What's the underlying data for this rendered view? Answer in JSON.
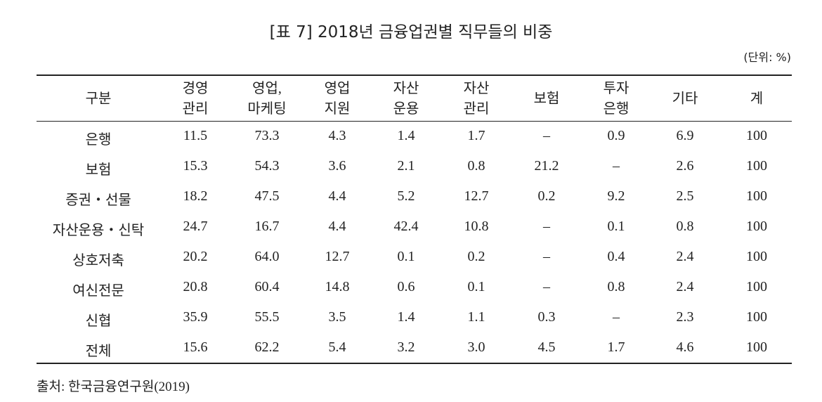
{
  "title": "[표 7] 2018년 금융업권별 직무들의 비중",
  "unit": "(단위: %)",
  "table": {
    "header": [
      [
        "구분"
      ],
      [
        "경영",
        "관리"
      ],
      [
        "영업,",
        "마케팅"
      ],
      [
        "영업",
        "지원"
      ],
      [
        "자산",
        "운용"
      ],
      [
        "자산",
        "관리"
      ],
      [
        "보험"
      ],
      [
        "투자",
        "은행"
      ],
      [
        "기타"
      ],
      [
        "계"
      ]
    ],
    "rows": [
      [
        "은행",
        "11.5",
        "73.3",
        "4.3",
        "1.4",
        "1.7",
        "–",
        "0.9",
        "6.9",
        "100"
      ],
      [
        "보험",
        "15.3",
        "54.3",
        "3.6",
        "2.1",
        "0.8",
        "21.2",
        "–",
        "2.6",
        "100"
      ],
      [
        "증권・선물",
        "18.2",
        "47.5",
        "4.4",
        "5.2",
        "12.7",
        "0.2",
        "9.2",
        "2.5",
        "100"
      ],
      [
        "자산운용・신탁",
        "24.7",
        "16.7",
        "4.4",
        "42.4",
        "10.8",
        "–",
        "0.1",
        "0.8",
        "100"
      ],
      [
        "상호저축",
        "20.2",
        "64.0",
        "12.7",
        "0.1",
        "0.2",
        "–",
        "0.4",
        "2.4",
        "100"
      ],
      [
        "여신전문",
        "20.8",
        "60.4",
        "14.8",
        "0.6",
        "0.1",
        "–",
        "0.8",
        "2.4",
        "100"
      ],
      [
        "신협",
        "35.9",
        "55.5",
        "3.5",
        "1.4",
        "1.1",
        "0.3",
        "–",
        "2.3",
        "100"
      ],
      [
        "전체",
        "15.6",
        "62.2",
        "5.4",
        "3.2",
        "3.0",
        "4.5",
        "1.7",
        "4.6",
        "100"
      ]
    ]
  },
  "source": "출처: 한국금융연구원(2019)"
}
